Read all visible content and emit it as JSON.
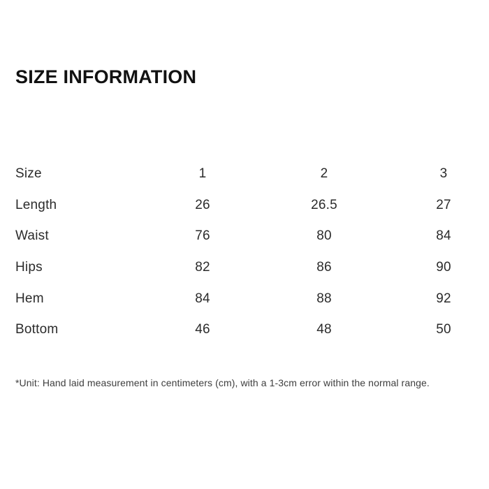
{
  "section": {
    "title": "SIZE INFORMATION",
    "footnote": "*Unit: Hand laid measurement in centimeters (cm), with a 1-3cm error within the normal range."
  },
  "size_table": {
    "size_options": [
      "1",
      "2",
      "3"
    ],
    "rows": [
      {
        "label": "Size",
        "values": [
          "1",
          "2",
          "3"
        ]
      },
      {
        "label": "Length",
        "values": [
          "26",
          "26.5",
          "27"
        ]
      },
      {
        "label": "Waist",
        "values": [
          "76",
          "80",
          "84"
        ]
      },
      {
        "label": "Hips",
        "values": [
          "82",
          "86",
          "90"
        ]
      },
      {
        "label": "Hem",
        "values": [
          "84",
          "88",
          "92"
        ]
      },
      {
        "label": "Bottom",
        "values": [
          "46",
          "48",
          "50"
        ]
      }
    ],
    "unit": "cm"
  },
  "colors": {
    "background": "#ffffff",
    "title_text": "#111111",
    "table_text": "#2b2b2b",
    "footnote_text": "#3e3e3e"
  }
}
